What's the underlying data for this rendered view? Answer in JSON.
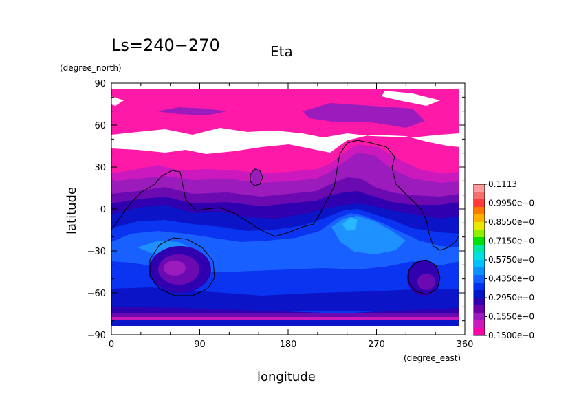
{
  "chart_data": {
    "type": "heatmap",
    "title": "Eta",
    "subtitle": "Ls=240−270",
    "xlabel": "longitude",
    "ylabel": "latitude",
    "x_unit": "(degree_east)",
    "y_unit": "(degree_north)",
    "xlim": [
      0,
      360
    ],
    "ylim": [
      -90,
      90
    ],
    "x_ticks": [
      "0",
      "90",
      "180",
      "270",
      "360"
    ],
    "y_ticks": [
      "90",
      "60",
      "30",
      "0",
      "−30",
      "−60",
      "−90"
    ],
    "x_tick_values": [
      0,
      90,
      180,
      270,
      360
    ],
    "y_tick_values": [
      90,
      60,
      30,
      0,
      -30,
      -60,
      -90
    ],
    "colorbar": {
      "labels": [
        "0.1113",
        "0.9950e−0",
        "0.8550e−0",
        "0.7150e−0",
        "0.5750e−0",
        "0.4350e−0",
        "0.2950e−0",
        "0.1550e−0",
        "0.1500e−0"
      ],
      "colors": [
        "#ff9a9a",
        "#f47070",
        "#ff3a3a",
        "#ff7a00",
        "#ffb000",
        "#e8e800",
        "#90ee00",
        "#00e000",
        "#00e8a0",
        "#00e0e0",
        "#00c0ff",
        "#0a90ff",
        "#1060ff",
        "#0030f0",
        "#0014c8",
        "#3000b0",
        "#6a00a8",
        "#9b1bbd",
        "#cc19bd",
        "#ff00a8"
      ]
    },
    "fill_levels": [
      {
        "name": "white",
        "color": "#ffffff"
      },
      {
        "name": "magenta",
        "color": "#ff19a8"
      },
      {
        "name": "pink-purple",
        "color": "#cc19bd"
      },
      {
        "name": "purple",
        "color": "#9b1bbd"
      },
      {
        "name": "dark-purple",
        "color": "#6b0ab0"
      },
      {
        "name": "indigo",
        "color": "#3000b0"
      },
      {
        "name": "dark-blue",
        "color": "#0c14c8"
      },
      {
        "name": "blue",
        "color": "#0a34f0"
      },
      {
        "name": "mid-blue",
        "color": "#1860ff"
      },
      {
        "name": "light-blue",
        "color": "#1e90ff"
      },
      {
        "name": "cyan",
        "color": "#28b8ff"
      }
    ],
    "grid": false,
    "legend": "right"
  }
}
